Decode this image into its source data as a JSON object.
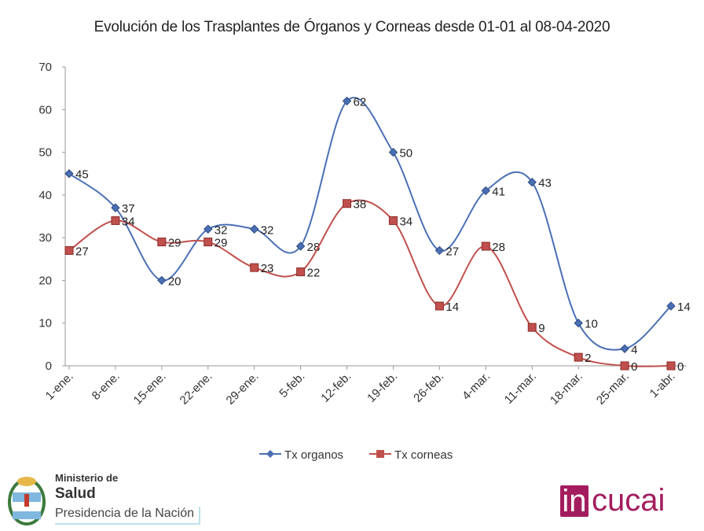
{
  "chart_data": {
    "type": "line",
    "title": "Evolución de los Trasplantes de Órganos y Corneas desde 01-01 al 08-04-2020",
    "categories": [
      "1-ene.",
      "8-ene.",
      "15-ene.",
      "22-ene.",
      "29-ene.",
      "5-feb.",
      "12-feb.",
      "19-feb.",
      "26-feb.",
      "4-mar.",
      "11-mar.",
      "18-mar.",
      "25-mar.",
      "1-abr."
    ],
    "ylim": [
      0,
      70
    ],
    "yticks": [
      0,
      10,
      20,
      30,
      40,
      50,
      60,
      70
    ],
    "grid": false,
    "legend": "bottom",
    "series": [
      {
        "name": "Tx organos",
        "color": "#4a6fb5",
        "marker": "diamond",
        "values": [
          45,
          37,
          20,
          32,
          32,
          28,
          62,
          50,
          27,
          41,
          43,
          10,
          4,
          14
        ]
      },
      {
        "name": "Tx corneas",
        "color": "#c0504d",
        "marker": "square",
        "values": [
          27,
          34,
          29,
          29,
          23,
          22,
          38,
          34,
          14,
          28,
          9,
          2,
          0,
          0
        ]
      }
    ]
  },
  "logos": {
    "ministerio_line1": "Ministerio de",
    "ministerio_line2": "Salud",
    "ministerio_line3": "Presidencia de la Nación",
    "incucai_box": "in",
    "incucai_rest": "cucai"
  }
}
